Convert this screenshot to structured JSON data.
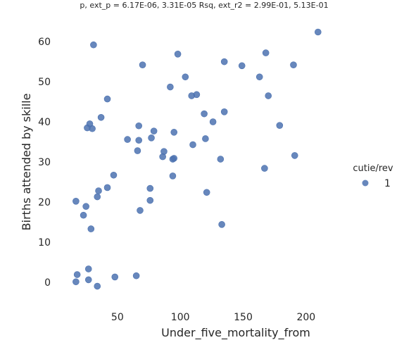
{
  "chart_data": {
    "type": "scatter",
    "title": "p, ext_p = 6.17E-06, 3.31E-05 Rsq, ext_r2 = 2.99E-01, 5.13E-01",
    "xlabel": "Under_five_mortality_from",
    "ylabel": "Births attended by skille",
    "xlim": [
      7,
      232
    ],
    "ylim": [
      -6,
      66
    ],
    "xticks": [
      50,
      100,
      150,
      200
    ],
    "yticks": [
      0,
      10,
      20,
      30,
      40,
      50,
      60
    ],
    "grid": false,
    "legend": {
      "title": "cutie/rev",
      "placement": "right",
      "entries": [
        "1"
      ]
    },
    "series": [
      {
        "name": "1",
        "color": "#4c72b0",
        "points": [
          [
            31,
            59.2
          ],
          [
            70,
            54.2
          ],
          [
            98,
            56.9
          ],
          [
            209.5,
            62.4
          ],
          [
            135,
            55.0
          ],
          [
            149,
            54.0
          ],
          [
            168,
            57.2
          ],
          [
            190,
            54.2
          ],
          [
            104,
            51.2
          ],
          [
            163,
            51.2
          ],
          [
            92,
            48.7
          ],
          [
            42,
            45.7
          ],
          [
            109,
            46.5
          ],
          [
            113,
            46.8
          ],
          [
            170,
            46.5
          ],
          [
            135,
            42.5
          ],
          [
            119,
            42.0
          ],
          [
            37,
            41.1
          ],
          [
            126,
            40.0
          ],
          [
            28,
            39.5
          ],
          [
            67,
            39.0
          ],
          [
            179,
            39.1
          ],
          [
            26,
            38.5
          ],
          [
            30,
            38.3
          ],
          [
            79,
            37.7
          ],
          [
            95,
            37.4
          ],
          [
            77,
            36.0
          ],
          [
            58,
            35.6
          ],
          [
            67,
            35.4
          ],
          [
            120,
            35.8
          ],
          [
            110,
            34.3
          ],
          [
            66,
            32.8
          ],
          [
            87,
            32.6
          ],
          [
            86,
            31.3
          ],
          [
            94,
            30.7
          ],
          [
            95,
            30.9
          ],
          [
            132,
            30.7
          ],
          [
            191,
            31.6
          ],
          [
            167,
            28.4
          ],
          [
            47,
            26.7
          ],
          [
            94,
            26.5
          ],
          [
            42,
            23.6
          ],
          [
            76,
            23.4
          ],
          [
            35,
            22.8
          ],
          [
            121,
            22.4
          ],
          [
            34,
            21.3
          ],
          [
            76,
            20.4
          ],
          [
            17,
            20.2
          ],
          [
            25,
            18.9
          ],
          [
            68,
            17.9
          ],
          [
            23,
            16.7
          ],
          [
            29,
            13.3
          ],
          [
            133,
            14.4
          ],
          [
            27,
            3.3
          ],
          [
            18,
            1.9
          ],
          [
            48,
            1.3
          ],
          [
            65,
            1.6
          ],
          [
            27,
            0.6
          ],
          [
            17,
            0.1
          ],
          [
            34,
            -1.0
          ]
        ]
      }
    ]
  }
}
